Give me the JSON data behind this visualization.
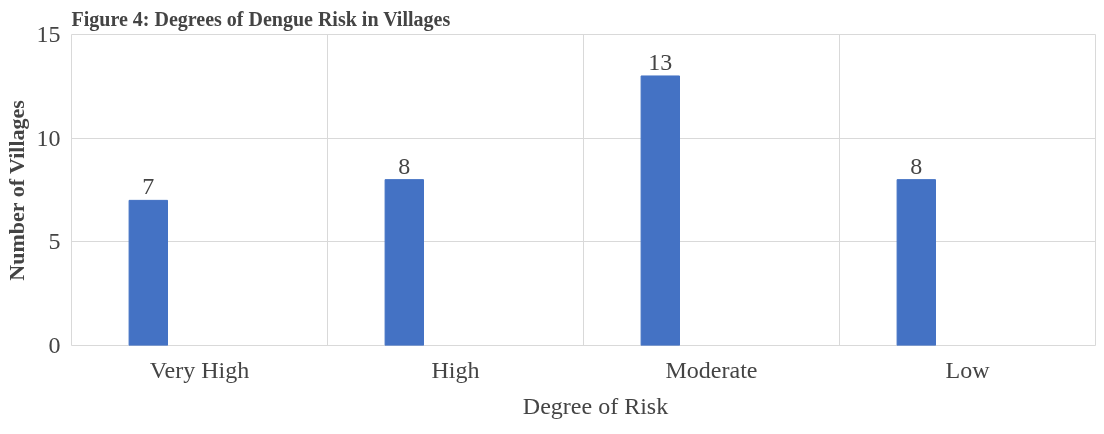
{
  "chart_data": {
    "type": "bar",
    "title": "Figure 4: Degrees of Dengue Risk in Villages",
    "ylabel": "Number of Villages",
    "categories": [
      "Very High",
      "High",
      "Moderate",
      "Low"
    ],
    "series": [
      {
        "name": "Degree of Risk",
        "color": "#4472c4",
        "values": [
          7,
          8,
          13,
          8
        ]
      }
    ],
    "ylim": [
      0,
      15
    ],
    "yticks": [
      0,
      5,
      10,
      15
    ],
    "grid": true,
    "legend": "bottom",
    "data_labels": true
  }
}
